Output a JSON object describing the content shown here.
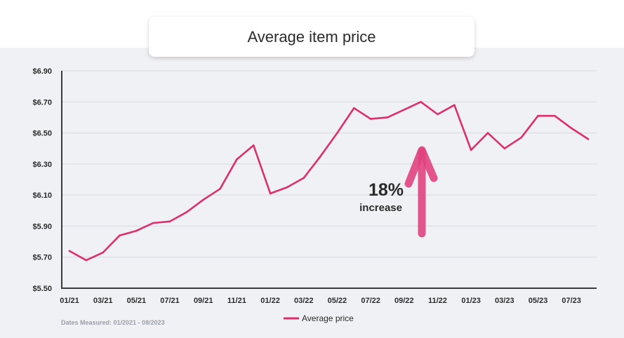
{
  "chart_data": {
    "type": "line",
    "title": "Average item price",
    "series": [
      {
        "name": "Average price",
        "color": "#dc2f6b",
        "values": [
          5.74,
          5.68,
          5.73,
          5.84,
          5.87,
          5.92,
          5.93,
          5.99,
          6.07,
          6.14,
          6.33,
          6.42,
          6.11,
          6.15,
          6.21,
          6.35,
          6.5,
          6.66,
          6.59,
          6.6,
          6.65,
          6.7,
          6.62,
          6.68,
          6.39,
          6.5,
          6.4,
          6.47,
          6.61,
          6.61,
          6.53,
          6.46
        ]
      }
    ],
    "x_tick_labels": [
      "01/21",
      "03/21",
      "05/21",
      "07/21",
      "09/21",
      "11/21",
      "01/22",
      "03/22",
      "05/22",
      "07/22",
      "09/22",
      "11/22",
      "01/23",
      "03/23",
      "05/23",
      "07/23"
    ],
    "y_tick_labels": [
      "$5.50",
      "$5.70",
      "$5.90",
      "$6.10",
      "$6.30",
      "$6.50",
      "$6.70",
      "$6.90"
    ],
    "ylim": [
      5.5,
      6.9
    ],
    "grid": true,
    "legend_position": "bottom-center",
    "annotation": {
      "value": "18%",
      "text": "increase",
      "arrow_color": "#e0437f"
    },
    "footnote": "Dates Measured: 01/2021 - 08/2023"
  }
}
